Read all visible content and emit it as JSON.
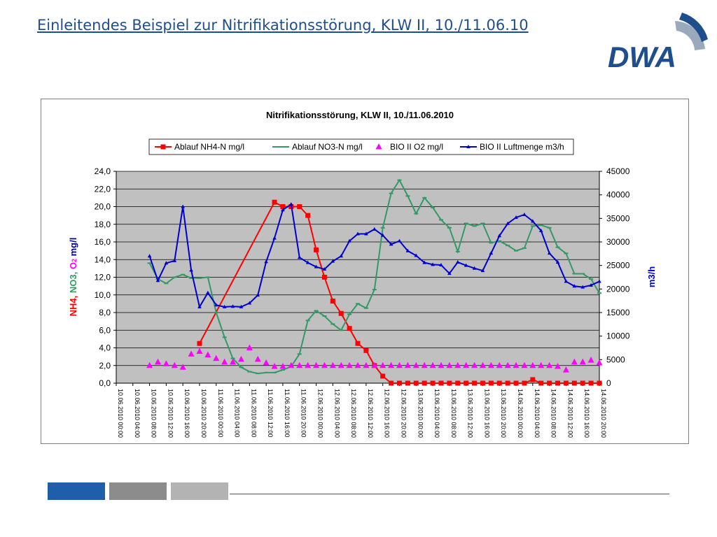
{
  "slide": {
    "title": "Einleitendes Beispiel zur Nitrifikationsstörung, KLW II, 10./11.06.10",
    "logo_text": "DWA"
  },
  "colors": {
    "title": "#1f4e8f",
    "logo": "#1f4e8f",
    "nh4": "#ff0000",
    "no3": "#339966",
    "o2": "#ff00ff",
    "air": "#0000cc",
    "plot_bg": "#c0c0c0",
    "footer": [
      "#1f5ea8",
      "#8c8c8c",
      "#b3b3b3"
    ]
  },
  "chart_data": {
    "type": "line",
    "title": "Nitrifikationsstörung, KLW II, 10./11.06.2010",
    "ylabel_parts": [
      "NH4",
      ", ",
      "NO3",
      ", ",
      "O",
      "2",
      " mg/l"
    ],
    "y2label": "m3/h",
    "ylim": [
      0,
      24
    ],
    "y_ticks": [
      "0,0",
      "2,0",
      "4,0",
      "6,0",
      "8,0",
      "10,0",
      "12,0",
      "14,0",
      "16,0",
      "18,0",
      "20,0",
      "22,0",
      "24,0"
    ],
    "y2lim": [
      0,
      45000
    ],
    "y2_ticks": [
      "0",
      "5000",
      "10000",
      "15000",
      "20000",
      "25000",
      "30000",
      "35000",
      "40000",
      "45000"
    ],
    "x_ticks": [
      "10.06.2010 00:00",
      "10.06.2010 04:00",
      "10.06.2010 08:00",
      "10.06.2010 12:00",
      "10.06.2010 16:00",
      "10.06.2010 20:00",
      "11.06.2010 00:00",
      "11.06.2010 04:00",
      "11.06.2010 08:00",
      "11.06.2010 12:00",
      "11.06.2010 16:00",
      "11.06.2010 20:00",
      "12.06.2010 00:00",
      "12.06.2010 04:00",
      "12.06.2010 08:00",
      "12.06.2010 12:00",
      "12.06.2010 16:00",
      "12.06.2010 20:00",
      "13.06.2010 00:00",
      "13.06.2010 04:00",
      "13.06.2010 08:00",
      "13.06.2010 12:00",
      "13.06.2010 16:00",
      "13.06.2010 20:00",
      "14.06.2010 00:00",
      "14.06.2010 04:00",
      "14.06.2010 08:00",
      "14.06.2010 12:00",
      "14.06.2010 16:00",
      "14.06.2010 20:00"
    ],
    "x_hours_range": [
      0,
      116
    ],
    "legend_position": "top",
    "grid": true,
    "series": [
      {
        "name": "Ablauf NH4-N mg/l",
        "axis": "left",
        "marker": "square",
        "color": "#ff0000",
        "x": [
          20,
          38,
          40,
          42,
          44,
          46,
          48,
          50,
          52,
          54,
          56,
          58,
          60,
          62,
          64,
          66,
          68,
          70,
          72,
          74,
          76,
          78,
          80,
          82,
          84,
          86,
          88,
          90,
          92,
          94,
          96,
          98,
          100,
          102,
          104,
          106,
          108,
          110,
          112,
          114,
          116
        ],
        "y": [
          4.5,
          20.5,
          20.0,
          20.0,
          20.0,
          19.0,
          15.1,
          12.0,
          9.3,
          7.9,
          6.2,
          4.5,
          3.7,
          2.0,
          0.8,
          0,
          0,
          0,
          0,
          0,
          0,
          0,
          0,
          0,
          0,
          0,
          0,
          0,
          0,
          0,
          0,
          0,
          0.4,
          0,
          0,
          0,
          0,
          0,
          0,
          0,
          0
        ]
      },
      {
        "name": "Ablauf NO3-N mg/l",
        "axis": "left",
        "marker": "dash",
        "color": "#339966",
        "x": [
          8,
          10,
          12,
          14,
          16,
          18,
          20,
          22,
          24,
          26,
          28,
          30,
          32,
          34,
          36,
          38,
          40,
          42,
          44,
          46,
          48,
          50,
          52,
          54,
          56,
          58,
          60,
          62,
          64,
          66,
          68,
          70,
          72,
          74,
          76,
          78,
          80,
          82,
          84,
          86,
          88,
          90,
          92,
          94,
          96,
          98,
          100,
          102,
          104,
          106,
          108,
          110,
          112,
          114,
          116
        ],
        "y": [
          13.6,
          11.8,
          11.3,
          12.0,
          12.3,
          11.9,
          11.9,
          12.0,
          8.0,
          5.2,
          2.8,
          1.8,
          1.3,
          1.1,
          1.2,
          1.2,
          1.5,
          1.9,
          3.3,
          7.1,
          8.2,
          7.6,
          6.7,
          6.0,
          7.8,
          9.0,
          8.5,
          10.6,
          17.6,
          21.5,
          23.0,
          21.2,
          19.2,
          21.0,
          19.9,
          18.5,
          17.6,
          14.9,
          18.1,
          17.8,
          18.1,
          15.9,
          16.1,
          15.6,
          15.0,
          15.3,
          17.8,
          17.9,
          17.6,
          15.4,
          14.7,
          12.4,
          12.4,
          11.8,
          10.2
        ]
      },
      {
        "name": "BIO II O2 mg/l",
        "axis": "left",
        "marker": "triangle",
        "color": "#ff00ff",
        "x": [
          8,
          10,
          12,
          14,
          16,
          18,
          20,
          22,
          24,
          26,
          28,
          30,
          32,
          34,
          36,
          38,
          40,
          42,
          44,
          46,
          48,
          50,
          52,
          54,
          56,
          58,
          60,
          62,
          64,
          66,
          68,
          70,
          72,
          74,
          76,
          78,
          80,
          82,
          84,
          86,
          88,
          90,
          92,
          94,
          96,
          98,
          100,
          102,
          104,
          106,
          108,
          110,
          112,
          114,
          116
        ],
        "y": [
          2.0,
          2.4,
          2.2,
          2.0,
          1.8,
          3.3,
          3.6,
          3.2,
          2.8,
          2.4,
          2.4,
          2.7,
          4.0,
          2.7,
          2.3,
          1.9,
          1.9,
          2.0,
          2.0,
          2.0,
          2.0,
          2.0,
          2.0,
          2.0,
          2.0,
          2.0,
          2.0,
          2.0,
          2.0,
          2.0,
          2.0,
          2.0,
          2.0,
          2.0,
          2.0,
          2.0,
          2.0,
          2.0,
          2.0,
          2.0,
          2.0,
          2.0,
          2.0,
          2.0,
          2.0,
          2.0,
          2.0,
          2.0,
          2.0,
          1.9,
          1.5,
          2.4,
          2.4,
          2.6,
          2.3
        ]
      },
      {
        "name": "BIO II Luftmenge m3/h",
        "axis": "right",
        "marker": "small-triangle",
        "color": "#0000cc",
        "x": [
          8,
          10,
          12,
          14,
          16,
          18,
          20,
          22,
          24,
          26,
          28,
          30,
          32,
          34,
          36,
          38,
          40,
          42,
          44,
          46,
          48,
          50,
          52,
          54,
          56,
          58,
          60,
          62,
          64,
          66,
          68,
          70,
          72,
          74,
          76,
          78,
          80,
          82,
          84,
          86,
          88,
          90,
          92,
          94,
          96,
          98,
          100,
          102,
          104,
          106,
          108,
          110,
          112,
          114,
          116
        ],
        "y": [
          27000,
          21800,
          25500,
          26000,
          37500,
          24000,
          16200,
          19200,
          16600,
          16200,
          16300,
          16200,
          17000,
          18700,
          25800,
          30800,
          36800,
          38000,
          26700,
          25600,
          24700,
          24200,
          25900,
          27000,
          30200,
          31700,
          31700,
          32700,
          31400,
          29500,
          30200,
          28100,
          27100,
          25600,
          25200,
          25100,
          23300,
          25700,
          25000,
          24400,
          23900,
          27600,
          31300,
          33900,
          35200,
          35800,
          34400,
          32400,
          27600,
          25700,
          21600,
          20600,
          20400,
          20800,
          21600
        ]
      }
    ]
  }
}
